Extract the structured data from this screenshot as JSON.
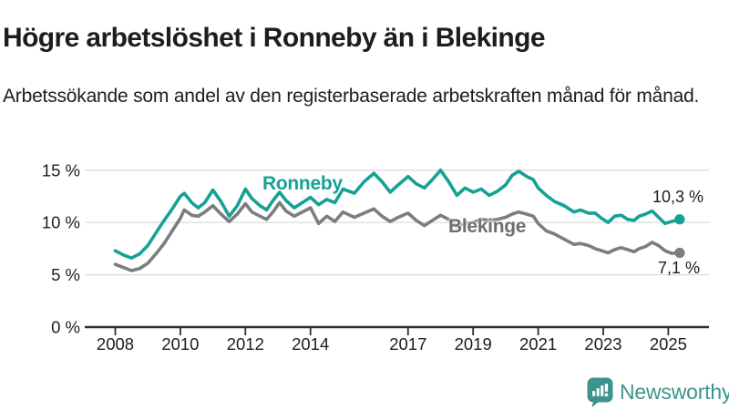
{
  "header": {
    "title": "Högre arbetslöshet i Ronneby än i Blekinge",
    "subtitle": "Arbetssökande som andel av den registerbaserade arbetskraften månad för månad."
  },
  "chart_data": {
    "type": "line",
    "unit": "%",
    "grid": "horizontal",
    "legend_position": "inline-labels",
    "grid_color": "#dedede",
    "axis_color": "#2e2e2e",
    "label_color": "#1d1d1b",
    "ylim": [
      0,
      16
    ],
    "y_ticks": [
      {
        "value": 0,
        "label": "0 %"
      },
      {
        "value": 5,
        "label": "5 %"
      },
      {
        "value": 10,
        "label": "10 %"
      },
      {
        "value": 15,
        "label": "15 %"
      }
    ],
    "x_ticks": [
      2008,
      2010,
      2012,
      2014,
      2017,
      2019,
      2021,
      2023,
      2025
    ],
    "x": [
      2008.0,
      2008.25,
      2008.5,
      2008.75,
      2009.0,
      2009.25,
      2009.5,
      2009.75,
      2010.0,
      2010.12,
      2010.35,
      2010.55,
      2010.75,
      2011.0,
      2011.25,
      2011.5,
      2011.75,
      2012.0,
      2012.2,
      2012.45,
      2012.65,
      2012.85,
      2013.05,
      2013.25,
      2013.5,
      2013.75,
      2014.0,
      2014.25,
      2014.5,
      2014.75,
      2015.0,
      2015.35,
      2015.65,
      2015.95,
      2016.2,
      2016.45,
      2016.7,
      2017.0,
      2017.25,
      2017.5,
      2017.75,
      2018.0,
      2018.25,
      2018.5,
      2018.75,
      2019.0,
      2019.25,
      2019.5,
      2019.75,
      2020.0,
      2020.2,
      2020.4,
      2020.65,
      2020.85,
      2021.0,
      2021.25,
      2021.5,
      2021.8,
      2022.1,
      2022.3,
      2022.55,
      2022.75,
      2022.95,
      2023.15,
      2023.35,
      2023.55,
      2023.75,
      2023.95,
      2024.1,
      2024.3,
      2024.5,
      2024.7,
      2024.9,
      2025.1,
      2025.35
    ],
    "series": [
      {
        "name": "Ronneby",
        "color": "#16a195",
        "end_label": "10,3 %",
        "end_value": 10.3,
        "values": [
          7.3,
          6.9,
          6.6,
          7.0,
          7.8,
          9.0,
          10.2,
          11.3,
          12.5,
          12.8,
          11.9,
          11.4,
          11.9,
          13.1,
          12.0,
          10.6,
          11.6,
          13.2,
          12.3,
          11.6,
          11.2,
          12.1,
          12.9,
          12.1,
          11.4,
          11.9,
          12.4,
          11.7,
          12.2,
          11.9,
          13.2,
          12.8,
          13.9,
          14.7,
          13.9,
          12.9,
          13.6,
          14.4,
          13.7,
          13.3,
          14.1,
          15.0,
          13.9,
          12.6,
          13.3,
          12.9,
          13.2,
          12.6,
          13.0,
          13.6,
          14.5,
          14.9,
          14.4,
          14.1,
          13.3,
          12.6,
          12.0,
          11.6,
          11.0,
          11.2,
          10.9,
          10.9,
          10.4,
          10.0,
          10.6,
          10.7,
          10.3,
          10.2,
          10.6,
          10.8,
          11.1,
          10.5,
          9.9,
          10.1,
          10.3
        ]
      },
      {
        "name": "Blekinge",
        "color": "#7d7d80",
        "end_label": "7,1 %",
        "end_value": 7.1,
        "values": [
          6.0,
          5.7,
          5.4,
          5.6,
          6.1,
          7.0,
          8.0,
          9.2,
          10.4,
          11.2,
          10.7,
          10.6,
          11.0,
          11.6,
          10.8,
          10.1,
          10.8,
          11.8,
          11.0,
          10.6,
          10.3,
          11.0,
          11.9,
          11.1,
          10.6,
          11.0,
          11.4,
          9.9,
          10.6,
          10.1,
          11.0,
          10.5,
          10.9,
          11.3,
          10.6,
          10.1,
          10.5,
          10.9,
          10.2,
          9.7,
          10.2,
          10.7,
          10.3,
          9.6,
          9.9,
          10.0,
          10.3,
          10.2,
          10.3,
          10.5,
          10.8,
          11.0,
          10.8,
          10.6,
          9.9,
          9.2,
          8.9,
          8.4,
          7.9,
          8.0,
          7.8,
          7.5,
          7.3,
          7.1,
          7.4,
          7.6,
          7.4,
          7.2,
          7.5,
          7.7,
          8.1,
          7.8,
          7.3,
          7.05,
          7.1
        ]
      }
    ]
  },
  "footer": {
    "brand": "Newsworthy",
    "logo_color": "#3d948e"
  }
}
